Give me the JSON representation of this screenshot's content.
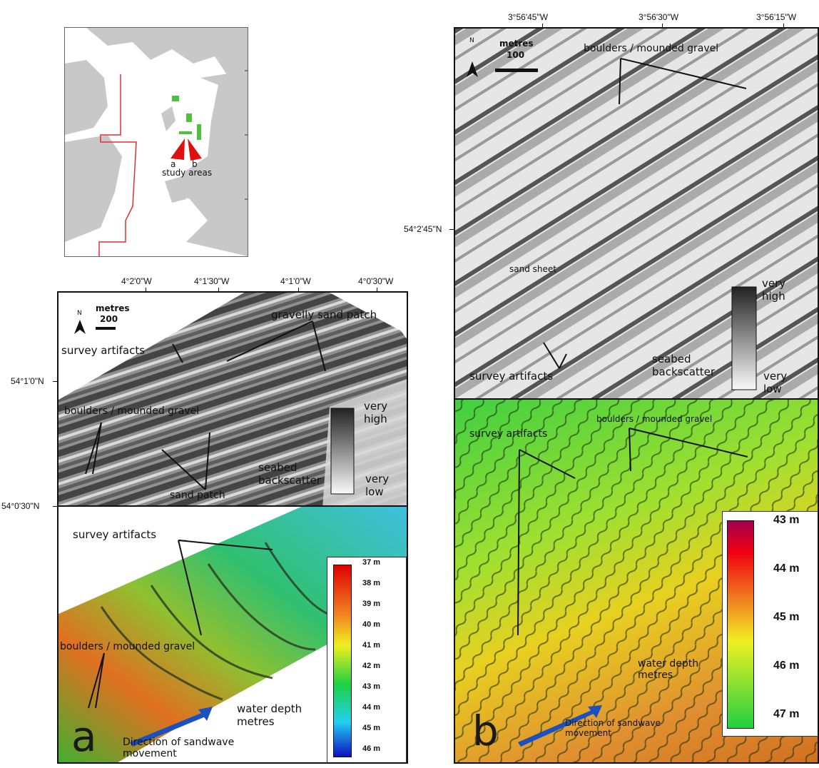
{
  "inset": {
    "study_label": "study areas",
    "marker_a": "a",
    "marker_b": "b",
    "colors": {
      "land": "#c8c8c8",
      "sea": "#ffffff",
      "boundary": "#e03030",
      "site": "#50c040",
      "arrow": "#e01010"
    }
  },
  "panel_a": {
    "lon_ticks": [
      "4°2'0\"W",
      "4°1'30\"W",
      "4°1'0\"W",
      "4°0'30\"W"
    ],
    "lat_ticks": [
      "54°1'0\"N",
      "54°0'30\"N"
    ],
    "north": "N",
    "scale_title": "metres",
    "scale_value": "200",
    "backscatter": {
      "labels": [
        "gravelly sand patch",
        "survey artifacts",
        "boulders / mounded gravel",
        "sand patch"
      ],
      "legend_high": "very high",
      "legend_title": "seabed backscatter",
      "legend_low": "very low"
    },
    "bathymetry": {
      "labels": [
        "survey artifacts",
        "boulders / mounded gravel",
        "water depth metres",
        "Direction of sandwave movement"
      ],
      "depth_ticks": [
        "37 m",
        "38 m",
        "39 m",
        "40 m",
        "41 m",
        "42 m",
        "43 m",
        "44 m",
        "45 m",
        "46 m"
      ],
      "panel_letter": "a"
    }
  },
  "panel_b": {
    "lon_ticks": [
      "3°56'45\"W",
      "3°56'30\"W",
      "3°56'15\"W"
    ],
    "lat_ticks": [
      "54°2'45\"N"
    ],
    "north": "N",
    "scale_title": "metres",
    "scale_value": "100",
    "backscatter": {
      "labels": [
        "boulders / mounded gravel",
        "sand sheet",
        "survey artifacts"
      ],
      "legend_high": "very high",
      "legend_title": "seabed backscatter",
      "legend_low": "very low"
    },
    "bathymetry": {
      "labels": [
        "survey artifacts",
        "boulders / mounded gravel",
        "water depth metres",
        "Direction of sandwave movement"
      ],
      "depth_ticks": [
        "43 m",
        "44 m",
        "45 m",
        "46 m",
        "47 m"
      ],
      "panel_letter": "b"
    }
  }
}
